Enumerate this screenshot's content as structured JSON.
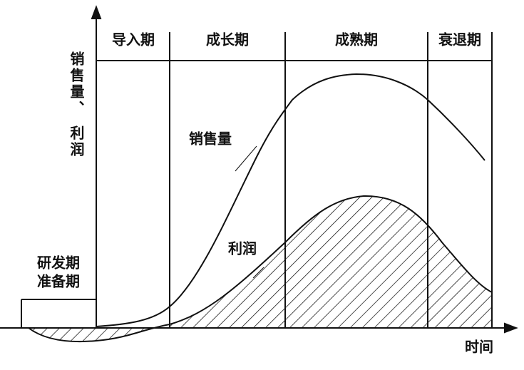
{
  "stages": [
    "导入期",
    "成长期",
    "成熟期",
    "衰退期"
  ],
  "y_axis_label": [
    "销售量、",
    "利润"
  ],
  "prep_stage": [
    "研发期",
    "准备期"
  ],
  "curve_labels": {
    "sales": "销售量",
    "profit": "利润"
  },
  "x_axis_label": "时间"
}
